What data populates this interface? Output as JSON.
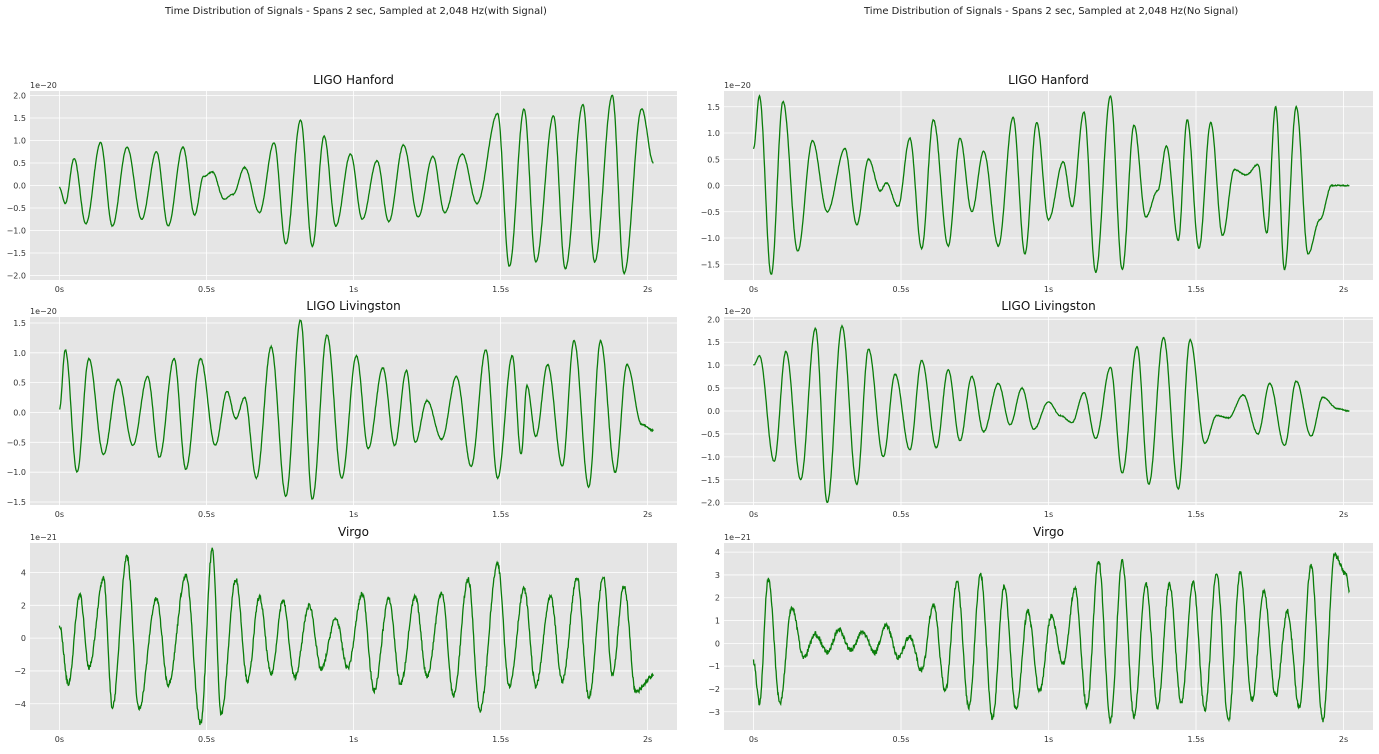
{
  "figures": [
    {
      "suptitle": "Time Distribution of Signals - Spans 2 sec, Sampled at 2,048 Hz(with Signal)"
    },
    {
      "suptitle": "Time Distribution of Signals - Spans 2 sec, Sampled at 2,048 Hz(No Signal)"
    }
  ],
  "colors": {
    "line": "#0a7d0a",
    "axes_bg": "#e5e5e5",
    "grid": "#ffffff",
    "text": "#333333"
  },
  "chart_data": [
    {
      "type": "line",
      "title": "LIGO Hanford",
      "offset_text": "1e−20",
      "x_ticks": [
        0,
        0.5,
        1,
        1.5,
        2
      ],
      "x_tick_labels": [
        "0s",
        "0.5s",
        "1s",
        "1.5s",
        "2s"
      ],
      "xlim": [
        -0.1,
        2.1
      ],
      "y_ticks": [
        -2.0,
        -1.5,
        -1.0,
        -0.5,
        0.0,
        0.5,
        1.0,
        1.5,
        2.0
      ],
      "y_tick_labels": [
        "−2.0",
        "−1.5",
        "−1.0",
        "−0.5",
        "0.0",
        "0.5",
        "1.0",
        "1.5",
        "2.0"
      ],
      "ylim": [
        -2.1,
        2.1
      ],
      "grid": true,
      "series": [
        {
          "x": [
            0,
            0.02,
            0.05,
            0.09,
            0.14,
            0.18,
            0.23,
            0.28,
            0.33,
            0.37,
            0.42,
            0.46,
            0.49,
            0.52,
            0.56,
            0.59,
            0.63,
            0.68,
            0.73,
            0.77,
            0.82,
            0.86,
            0.9,
            0.94,
            0.99,
            1.03,
            1.08,
            1.12,
            1.17,
            1.22,
            1.27,
            1.31,
            1.37,
            1.42,
            1.49,
            1.53,
            1.58,
            1.62,
            1.68,
            1.72,
            1.78,
            1.82,
            1.88,
            1.92,
            1.98,
            2.02
          ],
          "values": [
            -0.05,
            -0.4,
            0.6,
            -0.85,
            0.95,
            -0.9,
            0.85,
            -0.75,
            0.75,
            -0.9,
            0.85,
            -0.65,
            0.2,
            0.3,
            -0.3,
            -0.2,
            0.4,
            -0.6,
            0.95,
            -1.3,
            1.45,
            -1.35,
            1.1,
            -0.9,
            0.7,
            -0.75,
            0.55,
            -0.8,
            0.9,
            -0.7,
            0.65,
            -0.6,
            0.7,
            -0.4,
            1.6,
            -1.8,
            1.7,
            -1.7,
            1.55,
            -1.85,
            1.8,
            -1.7,
            2.0,
            -1.95,
            1.7,
            0.5
          ]
        }
      ],
      "noise": 0.02
    },
    {
      "type": "line",
      "title": "LIGO Livingston",
      "offset_text": "1e−20",
      "x_ticks": [
        0,
        0.5,
        1,
        1.5,
        2
      ],
      "x_tick_labels": [
        "0s",
        "0.5s",
        "1s",
        "1.5s",
        "2s"
      ],
      "xlim": [
        -0.1,
        2.1
      ],
      "y_ticks": [
        -1.5,
        -1.0,
        -0.5,
        0.0,
        0.5,
        1.0,
        1.5
      ],
      "y_tick_labels": [
        "−1.5",
        "−1.0",
        "−0.5",
        "0.0",
        "0.5",
        "1.0",
        "1.5"
      ],
      "ylim": [
        -1.55,
        1.6
      ],
      "grid": true,
      "series": [
        {
          "x": [
            0,
            0.02,
            0.06,
            0.1,
            0.15,
            0.2,
            0.25,
            0.3,
            0.34,
            0.39,
            0.43,
            0.48,
            0.53,
            0.57,
            0.6,
            0.63,
            0.67,
            0.72,
            0.77,
            0.82,
            0.86,
            0.91,
            0.96,
            1.01,
            1.05,
            1.1,
            1.14,
            1.18,
            1.21,
            1.25,
            1.3,
            1.35,
            1.4,
            1.45,
            1.49,
            1.54,
            1.57,
            1.59,
            1.62,
            1.66,
            1.71,
            1.75,
            1.8,
            1.84,
            1.89,
            1.93,
            1.98,
            2.02
          ],
          "values": [
            0.05,
            1.05,
            -1.0,
            0.9,
            -0.7,
            0.55,
            -0.55,
            0.6,
            -0.75,
            0.9,
            -0.95,
            0.9,
            -0.55,
            0.35,
            -0.1,
            0.25,
            -1.1,
            1.1,
            -1.4,
            1.55,
            -1.45,
            1.3,
            -1.1,
            0.95,
            -0.6,
            0.75,
            -0.55,
            0.7,
            -0.5,
            0.2,
            -0.45,
            0.6,
            -0.9,
            1.05,
            -1.1,
            0.95,
            -0.7,
            0.45,
            -0.4,
            0.8,
            -0.9,
            1.2,
            -1.25,
            1.2,
            -1.0,
            0.8,
            -0.2,
            -0.3
          ]
        }
      ],
      "noise": 0.02
    },
    {
      "type": "line",
      "title": "Virgo",
      "offset_text": "1e−21",
      "x_ticks": [
        0,
        0.5,
        1,
        1.5,
        2
      ],
      "x_tick_labels": [
        "0s",
        "0.5s",
        "1s",
        "1.5s",
        "2s"
      ],
      "xlim": [
        -0.1,
        2.1
      ],
      "y_ticks": [
        -4,
        -2,
        0,
        2,
        4
      ],
      "y_tick_labels": [
        "−4",
        "−2",
        "0",
        "2",
        "4"
      ],
      "ylim": [
        -5.6,
        5.8
      ],
      "grid": true,
      "series": [
        {
          "x": [
            0,
            0.03,
            0.07,
            0.1,
            0.15,
            0.18,
            0.23,
            0.27,
            0.33,
            0.37,
            0.43,
            0.48,
            0.52,
            0.55,
            0.6,
            0.64,
            0.68,
            0.72,
            0.76,
            0.8,
            0.85,
            0.89,
            0.94,
            0.98,
            1.03,
            1.07,
            1.12,
            1.16,
            1.21,
            1.25,
            1.3,
            1.34,
            1.39,
            1.43,
            1.49,
            1.53,
            1.58,
            1.62,
            1.67,
            1.71,
            1.76,
            1.8,
            1.85,
            1.88,
            1.92,
            1.96,
            2.02
          ],
          "values": [
            0.8,
            -2.8,
            2.7,
            -1.8,
            3.6,
            -4.2,
            5.0,
            -4.3,
            2.4,
            -2.8,
            3.8,
            -5.2,
            5.4,
            -4.6,
            3.6,
            -2.6,
            2.5,
            -2.2,
            2.3,
            -2.4,
            2.0,
            -1.9,
            1.2,
            -1.8,
            2.7,
            -3.2,
            2.4,
            -2.8,
            2.5,
            -2.3,
            2.8,
            -3.5,
            3.6,
            -4.4,
            4.5,
            -2.9,
            3.0,
            -2.9,
            2.5,
            -2.6,
            3.7,
            -3.6,
            3.8,
            -2.2,
            3.2,
            -3.3,
            -2.3
          ]
        }
      ],
      "noise": 0.3
    },
    {
      "type": "line",
      "title": "LIGO Hanford",
      "offset_text": "1e−20",
      "x_ticks": [
        0,
        0.5,
        1,
        1.5,
        2
      ],
      "x_tick_labels": [
        "0s",
        "0.5s",
        "1s",
        "1.5s",
        "2s"
      ],
      "xlim": [
        -0.1,
        2.1
      ],
      "y_ticks": [
        -1.5,
        -1.0,
        -0.5,
        0.0,
        0.5,
        1.0,
        1.5
      ],
      "y_tick_labels": [
        "−1.5",
        "−1.0",
        "−0.5",
        "0.0",
        "0.5",
        "1.0",
        "1.5"
      ],
      "ylim": [
        -1.8,
        1.8
      ],
      "grid": true,
      "series": [
        {
          "x": [
            0,
            0.02,
            0.06,
            0.1,
            0.15,
            0.2,
            0.25,
            0.31,
            0.35,
            0.39,
            0.43,
            0.45,
            0.49,
            0.53,
            0.57,
            0.61,
            0.66,
            0.7,
            0.74,
            0.78,
            0.83,
            0.88,
            0.92,
            0.96,
            1.0,
            1.05,
            1.08,
            1.12,
            1.16,
            1.21,
            1.25,
            1.29,
            1.33,
            1.37,
            1.4,
            1.44,
            1.47,
            1.51,
            1.55,
            1.59,
            1.63,
            1.67,
            1.71,
            1.74,
            1.77,
            1.8,
            1.84,
            1.88,
            1.92,
            1.96,
            2.0,
            2.02
          ],
          "values": [
            0.7,
            1.7,
            -1.7,
            1.6,
            -1.25,
            0.85,
            -0.5,
            0.7,
            -0.75,
            0.5,
            -0.1,
            0.05,
            -0.4,
            0.9,
            -1.2,
            1.25,
            -1.15,
            0.9,
            -0.5,
            0.65,
            -1.15,
            1.3,
            -1.3,
            1.2,
            -0.65,
            0.45,
            -0.4,
            1.4,
            -1.65,
            1.7,
            -1.6,
            1.15,
            -0.6,
            -0.1,
            0.75,
            -1.05,
            1.25,
            -1.2,
            1.2,
            -0.95,
            0.3,
            0.2,
            0.4,
            -0.9,
            1.5,
            -1.6,
            1.5,
            -1.3,
            -0.65,
            0,
            0,
            0
          ]
        }
      ],
      "noise": 0.02
    },
    {
      "type": "line",
      "title": "LIGO Livingston",
      "offset_text": "1e−20",
      "x_ticks": [
        0,
        0.5,
        1,
        1.5,
        2
      ],
      "x_tick_labels": [
        "0s",
        "0.5s",
        "1s",
        "1.5s",
        "2s"
      ],
      "xlim": [
        -0.1,
        2.1
      ],
      "y_ticks": [
        -2.0,
        -1.5,
        -1.0,
        -0.5,
        0.0,
        0.5,
        1.0,
        1.5,
        2.0
      ],
      "y_tick_labels": [
        "−2.0",
        "−1.5",
        "−1.0",
        "−0.5",
        "0.0",
        "0.5",
        "1.0",
        "1.5",
        "2.0"
      ],
      "ylim": [
        -2.05,
        2.05
      ],
      "grid": true,
      "series": [
        {
          "x": [
            0,
            0.02,
            0.07,
            0.11,
            0.16,
            0.21,
            0.25,
            0.3,
            0.35,
            0.39,
            0.44,
            0.48,
            0.53,
            0.57,
            0.62,
            0.66,
            0.7,
            0.74,
            0.78,
            0.83,
            0.87,
            0.91,
            0.95,
            1.0,
            1.04,
            1.08,
            1.12,
            1.16,
            1.21,
            1.25,
            1.3,
            1.34,
            1.39,
            1.44,
            1.48,
            1.53,
            1.57,
            1.61,
            1.66,
            1.71,
            1.75,
            1.8,
            1.84,
            1.89,
            1.93,
            1.98,
            2.02
          ],
          "values": [
            1.0,
            1.2,
            -1.1,
            1.3,
            -1.5,
            1.8,
            -2.0,
            1.85,
            -1.6,
            1.35,
            -1.0,
            0.8,
            -0.85,
            1.1,
            -0.8,
            0.9,
            -0.65,
            0.75,
            -0.45,
            0.6,
            -0.3,
            0.5,
            -0.4,
            0.2,
            -0.1,
            -0.25,
            0.4,
            -0.6,
            0.95,
            -1.35,
            1.4,
            -1.6,
            1.6,
            -1.7,
            1.55,
            -0.7,
            -0.1,
            -0.15,
            0.35,
            -0.5,
            0.6,
            -0.75,
            0.65,
            -0.55,
            0.3,
            0.05,
            0
          ]
        }
      ],
      "noise": 0.02
    },
    {
      "type": "line",
      "title": "Virgo",
      "offset_text": "1e−21",
      "x_ticks": [
        0,
        0.5,
        1,
        1.5,
        2
      ],
      "x_tick_labels": [
        "0s",
        "0.5s",
        "1s",
        "1.5s",
        "2s"
      ],
      "xlim": [
        -0.1,
        2.1
      ],
      "y_ticks": [
        -3,
        -2,
        -1,
        0,
        1,
        2,
        3,
        4
      ],
      "y_tick_labels": [
        "−3",
        "−2",
        "−1",
        "0",
        "1",
        "2",
        "3",
        "4"
      ],
      "ylim": [
        -3.8,
        4.4
      ],
      "grid": true,
      "series": [
        {
          "x": [
            0,
            0.02,
            0.05,
            0.09,
            0.13,
            0.17,
            0.21,
            0.25,
            0.29,
            0.33,
            0.37,
            0.41,
            0.45,
            0.49,
            0.53,
            0.57,
            0.61,
            0.65,
            0.69,
            0.73,
            0.77,
            0.81,
            0.85,
            0.89,
            0.93,
            0.97,
            1.01,
            1.05,
            1.09,
            1.13,
            1.17,
            1.21,
            1.25,
            1.29,
            1.33,
            1.37,
            1.41,
            1.45,
            1.49,
            1.53,
            1.57,
            1.61,
            1.65,
            1.69,
            1.73,
            1.77,
            1.81,
            1.85,
            1.89,
            1.93,
            1.97,
            2.01,
            2.02
          ],
          "values": [
            -0.8,
            -2.6,
            2.8,
            -2.6,
            1.6,
            -0.6,
            0.4,
            -0.4,
            0.6,
            -0.3,
            0.5,
            -0.4,
            0.8,
            -0.6,
            0.3,
            -1.2,
            1.7,
            -2.1,
            2.7,
            -2.8,
            3.0,
            -3.3,
            2.5,
            -2.9,
            1.4,
            -2.1,
            1.2,
            -0.9,
            2.4,
            -2.8,
            3.6,
            -3.4,
            3.6,
            -3.2,
            2.6,
            -2.8,
            2.6,
            -2.6,
            2.7,
            -2.9,
            3.1,
            -3.4,
            3.1,
            -2.5,
            2.3,
            -2.3,
            1.4,
            -2.8,
            3.4,
            -3.4,
            3.9,
            3.0,
            2.3
          ]
        }
      ],
      "noise": 0.22
    }
  ]
}
